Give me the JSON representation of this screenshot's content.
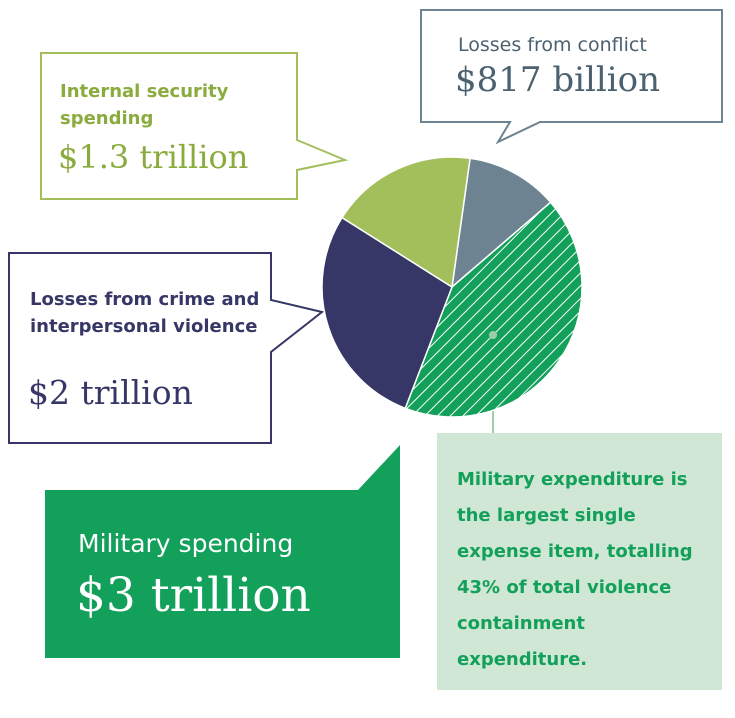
{
  "chart_data": {
    "type": "pie",
    "categories": [
      "Losses from conflict",
      "Military spending",
      "Losses from crime and interpersonal violence",
      "Internal security spending"
    ],
    "values": [
      817,
      3000,
      2000,
      1300
    ],
    "value_labels": [
      "$817 billion",
      "$3 trillion",
      "$2 trillion",
      "$1.3 trillion"
    ],
    "colors": [
      "#6d8391",
      "#12a05a",
      "#363766",
      "#a3bf5c"
    ],
    "hatched": [
      false,
      true,
      false,
      false
    ],
    "annotation": "Military expenditure is the largest single expense item, totalling 43% of total violence containment expenditure."
  }
}
